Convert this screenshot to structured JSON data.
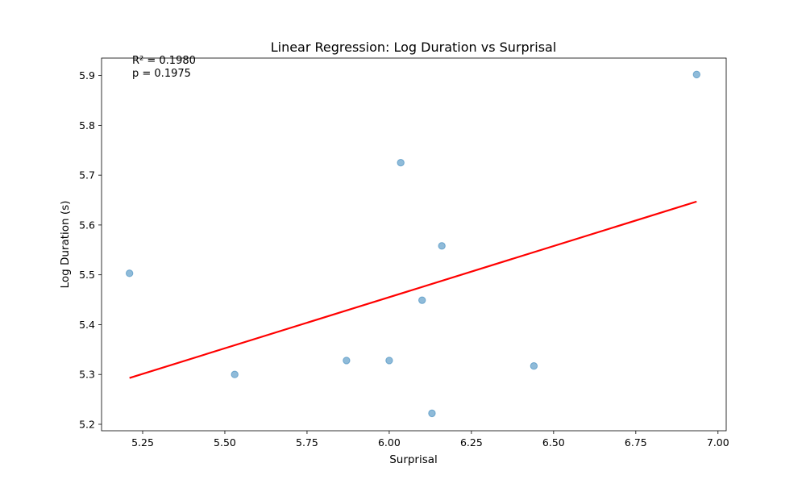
{
  "chart_data": {
    "type": "scatter",
    "title": "Linear Regression: Log Duration vs Surprisal",
    "xlabel": "Surprisal",
    "ylabel": "Log Duration (s)",
    "xlim": [
      5.125,
      7.025
    ],
    "ylim": [
      5.187,
      5.935
    ],
    "xticks": [
      "5.25",
      "5.50",
      "5.75",
      "6.00",
      "6.25",
      "6.50",
      "6.75",
      "7.00"
    ],
    "yticks": [
      "5.2",
      "5.3",
      "5.4",
      "5.5",
      "5.6",
      "5.7",
      "5.8",
      "5.9"
    ],
    "grid": false,
    "points": {
      "color": "#1f77b4",
      "x": [
        5.21,
        5.53,
        5.87,
        6.0,
        6.035,
        6.1,
        6.13,
        6.16,
        6.44,
        6.935
      ],
      "y": [
        5.503,
        5.3,
        5.328,
        5.328,
        5.725,
        5.449,
        5.222,
        5.558,
        5.317,
        5.902
      ]
    },
    "regression_line": {
      "color": "#ff0000",
      "x": [
        5.21,
        6.935
      ],
      "y": [
        5.293,
        5.647
      ]
    },
    "annotations": [
      "R² = 0.1980",
      "p = 0.1975"
    ]
  }
}
